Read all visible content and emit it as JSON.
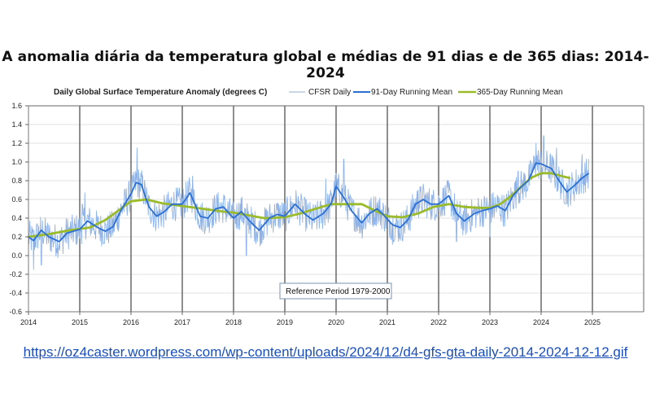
{
  "page": {
    "title": "A anomalia diária da temperatura global e médias de 91 dias e de 365 dias: 2014-2024",
    "source_link": "https://oz4caster.wordpress.com/wp-content/uploads/2024/12/d4-gfs-gta-daily-2014-2024-12-12.gif"
  },
  "chart_data": {
    "type": "line",
    "title": "Daily Global Surface Temperature Anomaly (degrees C)",
    "xlabel": "",
    "ylabel": "",
    "xlim": [
      2014,
      2025.95
    ],
    "ylim": [
      -0.6,
      1.6
    ],
    "x_ticks": [
      "2014",
      "2015",
      "2016",
      "2017",
      "2018",
      "2019",
      "2020",
      "2021",
      "2022",
      "2023",
      "2024",
      "2025"
    ],
    "y_ticks": [
      "1.6",
      "1.4",
      "1.2",
      "1.0",
      "0.8",
      "0.6",
      "0.4",
      "0.2",
      "0.0",
      "-0.2",
      "-0.4",
      "-0.6"
    ],
    "grid": true,
    "legend_position": "top-right",
    "annotation": "Reference Period 1979-2000",
    "colors": {
      "daily": "#8fb3e6",
      "mean91": "#2a6fd1",
      "mean365": "#9bbb2a",
      "year_lines": "#444444",
      "grid": "#e2e2e2"
    },
    "series": [
      {
        "name": "CFSR Daily",
        "style": "thin light-blue, daily values fluctuating about ±0.2 around the 91-day mean",
        "approx_peaks": [
          [
            2015.05,
            0.55
          ],
          [
            2015.1,
            0.67
          ],
          [
            2016.12,
            1.15
          ],
          [
            2017.2,
            0.85
          ],
          [
            2019.8,
            0.82
          ],
          [
            2020.15,
            1.03
          ],
          [
            2021.6,
            0.7
          ],
          [
            2023.55,
            0.9
          ],
          [
            2023.9,
            1.2
          ],
          [
            2024.05,
            1.28
          ],
          [
            2024.3,
            1.15
          ],
          [
            2024.8,
            1.08
          ]
        ],
        "approx_troughs": [
          [
            2014.1,
            -0.15
          ],
          [
            2014.25,
            -0.1
          ],
          [
            2018.25,
            0.0
          ],
          [
            2021.1,
            0.12
          ],
          [
            2022.35,
            0.15
          ],
          [
            2023.0,
            0.2
          ]
        ]
      },
      {
        "name": "91-Day Running Mean",
        "x": [
          2014.0,
          2014.1,
          2014.25,
          2014.4,
          2014.6,
          2014.75,
          2015.0,
          2015.15,
          2015.35,
          2015.5,
          2015.65,
          2015.8,
          2016.0,
          2016.1,
          2016.2,
          2016.35,
          2016.5,
          2016.65,
          2016.8,
          2017.0,
          2017.15,
          2017.35,
          2017.5,
          2017.65,
          2017.8,
          2018.0,
          2018.15,
          2018.35,
          2018.5,
          2018.7,
          2018.85,
          2019.0,
          2019.2,
          2019.4,
          2019.55,
          2019.75,
          2019.9,
          2020.0,
          2020.15,
          2020.3,
          2020.5,
          2020.65,
          2020.8,
          2020.9,
          2021.1,
          2021.25,
          2021.4,
          2021.55,
          2021.7,
          2021.85,
          2022.0,
          2022.2,
          2022.35,
          2022.5,
          2022.7,
          2022.85,
          2023.0,
          2023.15,
          2023.3,
          2023.45,
          2023.6,
          2023.75,
          2023.9,
          2024.0,
          2024.2,
          2024.35,
          2024.5,
          2024.65,
          2024.8,
          2024.93
        ],
        "y": [
          0.2,
          0.16,
          0.27,
          0.2,
          0.15,
          0.24,
          0.28,
          0.37,
          0.3,
          0.26,
          0.31,
          0.48,
          0.66,
          0.78,
          0.76,
          0.52,
          0.42,
          0.47,
          0.55,
          0.55,
          0.67,
          0.42,
          0.4,
          0.5,
          0.52,
          0.4,
          0.47,
          0.35,
          0.27,
          0.4,
          0.44,
          0.42,
          0.55,
          0.44,
          0.38,
          0.45,
          0.55,
          0.74,
          0.62,
          0.48,
          0.35,
          0.45,
          0.5,
          0.45,
          0.33,
          0.3,
          0.38,
          0.55,
          0.6,
          0.55,
          0.55,
          0.64,
          0.45,
          0.37,
          0.45,
          0.48,
          0.5,
          0.53,
          0.48,
          0.64,
          0.73,
          0.8,
          0.99,
          0.98,
          0.93,
          0.8,
          0.68,
          0.75,
          0.83,
          0.88
        ]
      },
      {
        "name": "365-Day Running Mean",
        "x": [
          2014.0,
          2014.4,
          2014.8,
          2015.2,
          2015.5,
          2015.8,
          2016.0,
          2016.3,
          2016.6,
          2017.0,
          2017.4,
          2017.8,
          2018.0,
          2018.3,
          2018.6,
          2019.0,
          2019.3,
          2019.6,
          2019.9,
          2020.2,
          2020.5,
          2020.8,
          2021.0,
          2021.3,
          2021.6,
          2021.9,
          2022.2,
          2022.5,
          2022.8,
          2023.0,
          2023.2,
          2023.4,
          2023.6,
          2023.8,
          2024.0,
          2024.2,
          2024.4,
          2024.55
        ],
        "y": [
          0.2,
          0.23,
          0.27,
          0.3,
          0.38,
          0.5,
          0.58,
          0.6,
          0.56,
          0.53,
          0.5,
          0.47,
          0.46,
          0.43,
          0.4,
          0.41,
          0.45,
          0.5,
          0.55,
          0.55,
          0.55,
          0.47,
          0.42,
          0.41,
          0.45,
          0.52,
          0.55,
          0.52,
          0.51,
          0.51,
          0.55,
          0.63,
          0.73,
          0.83,
          0.88,
          0.88,
          0.85,
          0.83
        ]
      }
    ]
  }
}
